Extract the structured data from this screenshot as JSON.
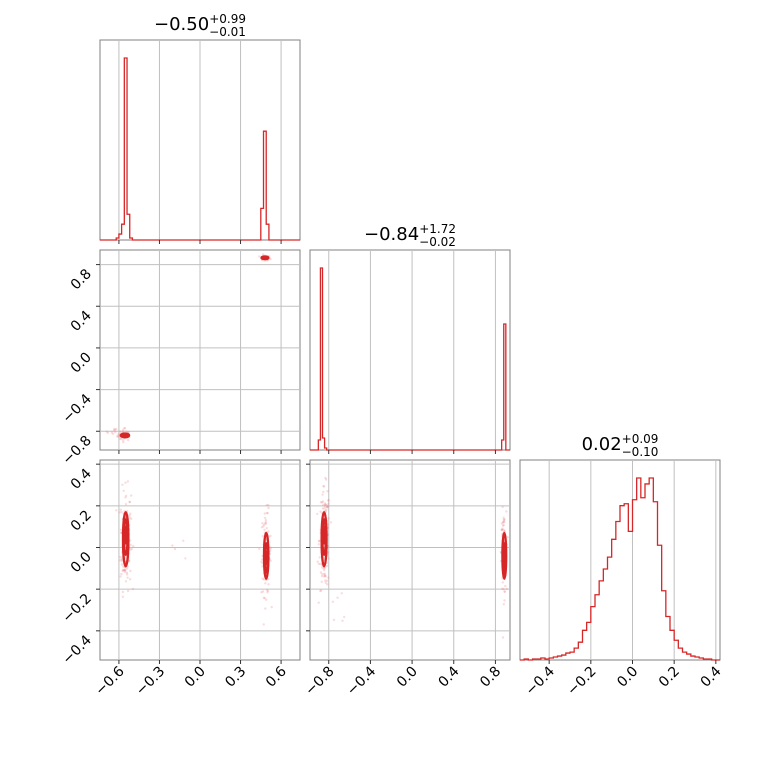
{
  "chart_data": {
    "type": "corner",
    "color": "#d62728",
    "point_color": "#e8828a",
    "parameters": [
      {
        "label": "",
        "range": [
          -0.74,
          0.74
        ],
        "ticks": [
          -0.6,
          -0.3,
          0.0,
          0.3,
          0.6
        ],
        "tick_labels": [
          "−0.6",
          "−0.3",
          "0.0",
          "0.3",
          "0.6"
        ],
        "title": {
          "median": "−0.50",
          "plus": "+0.99",
          "minus": "−0.01"
        }
      },
      {
        "label": "",
        "range": [
          -0.98,
          0.94
        ],
        "ticks": [
          -0.8,
          -0.4,
          0.0,
          0.4,
          0.8
        ],
        "tick_labels": [
          "−0.8",
          "−0.4",
          "0.0",
          "0.4",
          "0.8"
        ],
        "title": {
          "median": "−0.84",
          "plus": "+1.72",
          "minus": "−0.02"
        }
      },
      {
        "label": "",
        "range": [
          -0.54,
          0.42
        ],
        "ticks": [
          -0.4,
          -0.2,
          0.0,
          0.2,
          0.4
        ],
        "tick_labels": [
          "−0.4",
          "−0.2",
          "0.0",
          "0.2",
          "0.4"
        ],
        "title": {
          "median": "0.02",
          "plus": "+0.09",
          "minus": "−0.10"
        }
      }
    ],
    "histograms": [
      {
        "param": 0,
        "steps": [
          [
            -0.74,
            0
          ],
          [
            -0.62,
            0
          ],
          [
            -0.62,
            1
          ],
          [
            -0.6,
            1
          ],
          [
            -0.6,
            3
          ],
          [
            -0.58,
            3
          ],
          [
            -0.58,
            8
          ],
          [
            -0.56,
            8
          ],
          [
            -0.56,
            92
          ],
          [
            -0.54,
            92
          ],
          [
            -0.54,
            13
          ],
          [
            -0.52,
            13
          ],
          [
            -0.52,
            1
          ],
          [
            -0.5,
            1
          ],
          [
            -0.5,
            0
          ],
          [
            0.45,
            0
          ],
          [
            0.45,
            16
          ],
          [
            0.47,
            16
          ],
          [
            0.47,
            55
          ],
          [
            0.49,
            55
          ],
          [
            0.49,
            8
          ],
          [
            0.51,
            8
          ],
          [
            0.51,
            0
          ],
          [
            0.74,
            0
          ]
        ]
      },
      {
        "param": 1,
        "steps": [
          [
            -0.98,
            0
          ],
          [
            -0.9,
            0
          ],
          [
            -0.9,
            5
          ],
          [
            -0.88,
            5
          ],
          [
            -0.88,
            91
          ],
          [
            -0.86,
            91
          ],
          [
            -0.86,
            6
          ],
          [
            -0.84,
            6
          ],
          [
            -0.84,
            1
          ],
          [
            -0.82,
            1
          ],
          [
            -0.82,
            0
          ],
          [
            0.86,
            0
          ],
          [
            0.86,
            5
          ],
          [
            0.88,
            5
          ],
          [
            0.88,
            63
          ],
          [
            0.9,
            63
          ],
          [
            0.9,
            0
          ],
          [
            0.94,
            0
          ]
        ]
      },
      {
        "param": 2,
        "steps": [
          [
            -0.54,
            0
          ],
          [
            -0.52,
            0
          ],
          [
            -0.52,
            0.5
          ],
          [
            -0.5,
            0.5
          ],
          [
            -0.5,
            0
          ],
          [
            -0.48,
            0
          ],
          [
            -0.48,
            0.5
          ],
          [
            -0.46,
            0.5
          ],
          [
            -0.46,
            0.5
          ],
          [
            -0.44,
            0.5
          ],
          [
            -0.44,
            1
          ],
          [
            -0.42,
            1
          ],
          [
            -0.42,
            0.5
          ],
          [
            -0.4,
            0.5
          ],
          [
            -0.4,
            1
          ],
          [
            -0.38,
            1
          ],
          [
            -0.38,
            1.5
          ],
          [
            -0.36,
            1.5
          ],
          [
            -0.36,
            2
          ],
          [
            -0.34,
            2
          ],
          [
            -0.34,
            2.5
          ],
          [
            -0.32,
            2.5
          ],
          [
            -0.32,
            3.5
          ],
          [
            -0.3,
            3.5
          ],
          [
            -0.3,
            4
          ],
          [
            -0.28,
            4
          ],
          [
            -0.28,
            6
          ],
          [
            -0.26,
            6
          ],
          [
            -0.26,
            9
          ],
          [
            -0.24,
            9
          ],
          [
            -0.24,
            15
          ],
          [
            -0.22,
            15
          ],
          [
            -0.22,
            19
          ],
          [
            -0.2,
            19
          ],
          [
            -0.2,
            27
          ],
          [
            -0.18,
            27
          ],
          [
            -0.18,
            33
          ],
          [
            -0.16,
            33
          ],
          [
            -0.16,
            40
          ],
          [
            -0.14,
            40
          ],
          [
            -0.14,
            46
          ],
          [
            -0.12,
            46
          ],
          [
            -0.12,
            52
          ],
          [
            -0.1,
            52
          ],
          [
            -0.1,
            61
          ],
          [
            -0.08,
            61
          ],
          [
            -0.08,
            70
          ],
          [
            -0.06,
            70
          ],
          [
            -0.06,
            78
          ],
          [
            -0.04,
            78
          ],
          [
            -0.04,
            79
          ],
          [
            -0.02,
            79
          ],
          [
            -0.02,
            65
          ],
          [
            0.0,
            65
          ],
          [
            0.0,
            81
          ],
          [
            0.02,
            81
          ],
          [
            0.02,
            92
          ],
          [
            0.04,
            92
          ],
          [
            0.04,
            82
          ],
          [
            0.06,
            82
          ],
          [
            0.06,
            89
          ],
          [
            0.08,
            89
          ],
          [
            0.08,
            92
          ],
          [
            0.1,
            92
          ],
          [
            0.1,
            80
          ],
          [
            0.12,
            80
          ],
          [
            0.12,
            58
          ],
          [
            0.14,
            58
          ],
          [
            0.14,
            35
          ],
          [
            0.16,
            35
          ],
          [
            0.16,
            22
          ],
          [
            0.18,
            22
          ],
          [
            0.18,
            15
          ],
          [
            0.2,
            15
          ],
          [
            0.2,
            10
          ],
          [
            0.22,
            10
          ],
          [
            0.22,
            6
          ],
          [
            0.24,
            6
          ],
          [
            0.24,
            4
          ],
          [
            0.26,
            4
          ],
          [
            0.26,
            3
          ],
          [
            0.28,
            3
          ],
          [
            0.28,
            2
          ],
          [
            0.3,
            2
          ],
          [
            0.3,
            1.5
          ],
          [
            0.32,
            1.5
          ],
          [
            0.32,
            1
          ],
          [
            0.34,
            1
          ],
          [
            0.34,
            0.5
          ],
          [
            0.38,
            0.5
          ],
          [
            0.38,
            0
          ],
          [
            0.42,
            0
          ]
        ]
      }
    ],
    "scatter_2d": [
      {
        "x_param": 0,
        "y_param": 1,
        "clusters": [
          {
            "x": -0.56,
            "y": -0.84,
            "sx": 0.025,
            "sy": 0.025,
            "n": 40
          },
          {
            "x": -0.62,
            "y": -0.8,
            "sx": 0.04,
            "sy": 0.02,
            "n": 12
          },
          {
            "x": 0.48,
            "y": 0.86,
            "sx": 0.02,
            "sy": 0.015,
            "n": 30
          }
        ],
        "contours": [
          {
            "x": -0.555,
            "y": -0.84,
            "rx": 0.03,
            "ry": 0.018
          },
          {
            "x": -0.55,
            "y": -0.842,
            "rx": 0.02,
            "ry": 0.01
          },
          {
            "x": 0.48,
            "y": 0.865,
            "rx": 0.025,
            "ry": 0.012
          },
          {
            "x": 0.485,
            "y": 0.86,
            "rx": 0.012,
            "ry": 0.006
          }
        ]
      },
      {
        "x_param": 0,
        "y_param": 2,
        "clusters": [
          {
            "x": -0.55,
            "y": 0.04,
            "sx": 0.02,
            "sy": 0.12,
            "n": 160
          },
          {
            "x": 0.49,
            "y": -0.03,
            "sx": 0.018,
            "sy": 0.1,
            "n": 110
          },
          {
            "x": -0.2,
            "y": 0.0,
            "sx": 0.1,
            "sy": 0.08,
            "n": 4
          }
        ],
        "contours": [
          {
            "x": -0.55,
            "y": 0.04,
            "rx": 0.02,
            "ry": 0.13
          },
          {
            "x": -0.55,
            "y": 0.05,
            "rx": 0.013,
            "ry": 0.085
          },
          {
            "x": -0.55,
            "y": 0.06,
            "rx": 0.006,
            "ry": 0.04
          },
          {
            "x": 0.49,
            "y": -0.04,
            "rx": 0.016,
            "ry": 0.11
          },
          {
            "x": 0.49,
            "y": -0.05,
            "rx": 0.011,
            "ry": 0.07
          },
          {
            "x": 0.49,
            "y": -0.05,
            "rx": 0.005,
            "ry": 0.03
          }
        ]
      },
      {
        "x_param": 1,
        "y_param": 2,
        "clusters": [
          {
            "x": -0.84,
            "y": 0.04,
            "sx": 0.025,
            "sy": 0.12,
            "n": 160
          },
          {
            "x": 0.88,
            "y": -0.03,
            "sx": 0.012,
            "sy": 0.1,
            "n": 110
          },
          {
            "x": -0.7,
            "y": -0.3,
            "sx": 0.06,
            "sy": 0.06,
            "n": 6
          }
        ],
        "contours": [
          {
            "x": -0.845,
            "y": 0.04,
            "rx": 0.024,
            "ry": 0.13
          },
          {
            "x": -0.845,
            "y": 0.05,
            "rx": 0.016,
            "ry": 0.085
          },
          {
            "x": -0.845,
            "y": 0.06,
            "rx": 0.007,
            "ry": 0.04
          },
          {
            "x": 0.885,
            "y": -0.04,
            "rx": 0.018,
            "ry": 0.11
          },
          {
            "x": 0.885,
            "y": -0.05,
            "rx": 0.011,
            "ry": 0.07
          },
          {
            "x": 0.885,
            "y": -0.05,
            "rx": 0.005,
            "ry": 0.03
          }
        ]
      }
    ]
  }
}
